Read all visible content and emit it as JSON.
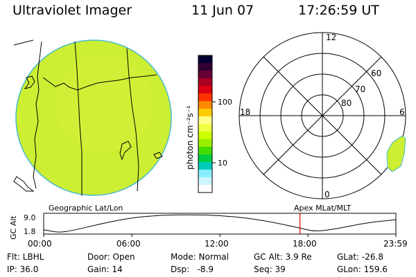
{
  "header": {
    "title": "Ultraviolet Imager",
    "date": "11 Jun 07",
    "time": "17:26:59 UT"
  },
  "colorbar": {
    "unit_label": "photon cm⁻²s⁻¹",
    "ticks": [
      "100",
      "10"
    ],
    "colors": [
      "#000033",
      "#330033",
      "#660033",
      "#aa0022",
      "#dd0011",
      "#ff3300",
      "#ff8800",
      "#ffcc00",
      "#ffff88",
      "#eeff44",
      "#ccff00",
      "#99ee00",
      "#44dd00",
      "#00cc44",
      "#00ccbb",
      "#88eeff",
      "#ccf6ff",
      "#ffffff"
    ]
  },
  "polar_plot": {
    "mlt_labels": [
      "12",
      "18",
      "6",
      "0"
    ],
    "lat_labels": [
      "60",
      "70",
      "80"
    ],
    "ring_latitudes": [
      50,
      60,
      70,
      80
    ]
  },
  "timeline": {
    "left_caption": "Geographic Lat/Lon",
    "right_caption": "Apex MLat/MLT",
    "y_axis_title": "GC Alt",
    "y_ticks": [
      "9.0",
      "1.8"
    ],
    "x_ticks": [
      "00:00",
      "06:00",
      "12:00",
      "18:00",
      "23:59"
    ],
    "marker_color": "#dd0000"
  },
  "chart_data": {
    "type": "line",
    "title": "",
    "xlabel": "",
    "ylabel": "GC Alt",
    "x_hours": [
      0,
      1,
      2,
      4,
      6,
      8,
      10,
      12,
      14,
      16,
      17.5,
      18.5,
      20,
      22,
      23.98
    ],
    "y_values": [
      3.0,
      1.8,
      2.7,
      5.5,
      7.8,
      8.8,
      9.0,
      8.7,
      7.6,
      5.5,
      3.6,
      2.2,
      3.4,
      5.8,
      7.0
    ],
    "ylim": [
      1.8,
      9.0
    ],
    "xlim": [
      "00:00",
      "23:59"
    ],
    "current_time": "17:26:59"
  },
  "info": {
    "flt": "Flt: LBHL",
    "ip": "IP: 36.0",
    "door": "Door: Open",
    "gain": "Gain: 14",
    "mode": "Mode: Normal",
    "dsp": "Dsp:   -8.9",
    "gc_alt": "GC Alt: 3.9 Re",
    "seq": "Seq: 39",
    "glat": "GLat: -26.8",
    "glon": "GLon: 159.6"
  }
}
